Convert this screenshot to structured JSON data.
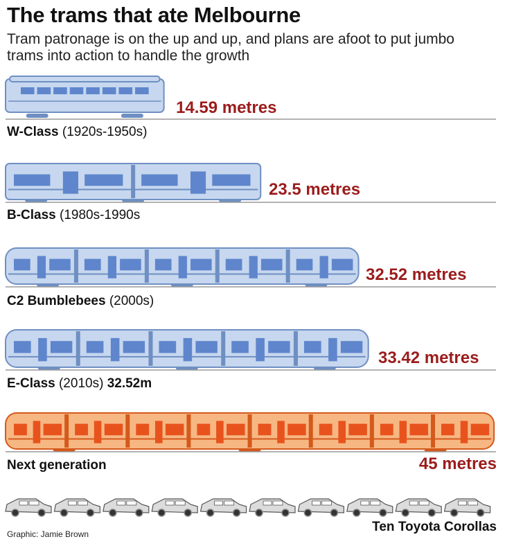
{
  "title": "The trams that ate Melbourne",
  "subtitle": "Tram patronage is on the up and up, and plans are afoot to put jumbo trams into action to handle the growth",
  "colors": {
    "existing_fill": "#c6d7ef",
    "existing_stroke": "#6f8fc2",
    "existing_window": "#5f86cc",
    "next_fill": "#f7b783",
    "next_stroke": "#d45a1c",
    "next_window": "#e8531d",
    "car_fill": "#dcdcdc",
    "car_stroke": "#555555",
    "length_text": "#9b1c1c",
    "baseline": "#999999"
  },
  "chart_data": {
    "type": "bar",
    "title": "The trams that ate Melbourne",
    "unit": "metres",
    "categories": [
      "W-Class",
      "B-Class",
      "C2 Bumblebees",
      "E-Class",
      "Next generation"
    ],
    "values": [
      14.59,
      23.5,
      32.52,
      33.42,
      45
    ],
    "trams": [
      {
        "name": "W-Class",
        "era": "(1920s-1950s)",
        "extra": "",
        "length": 14.59,
        "length_label": "14.59 metres",
        "style": "vintage"
      },
      {
        "name": "B-Class",
        "era": "(1980s-1990s",
        "extra": "",
        "length": 23.5,
        "length_label": "23.5 metres",
        "style": "articulated"
      },
      {
        "name": "C2 Bumblebees",
        "era": "(2000s)",
        "extra": "",
        "length": 32.52,
        "length_label": "32.52 metres",
        "style": "modern"
      },
      {
        "name": "E-Class",
        "era": "(2010s)",
        "extra": "32.52m",
        "length": 33.42,
        "length_label": "33.42 metres",
        "style": "modern"
      },
      {
        "name": "Next generation",
        "era": "",
        "extra": "",
        "length": 45,
        "length_label": "45 metres",
        "style": "next"
      }
    ],
    "comparison": {
      "label": "Ten Toyota Corollas",
      "count": 10
    }
  },
  "credit": "Graphic: Jamie Brown"
}
